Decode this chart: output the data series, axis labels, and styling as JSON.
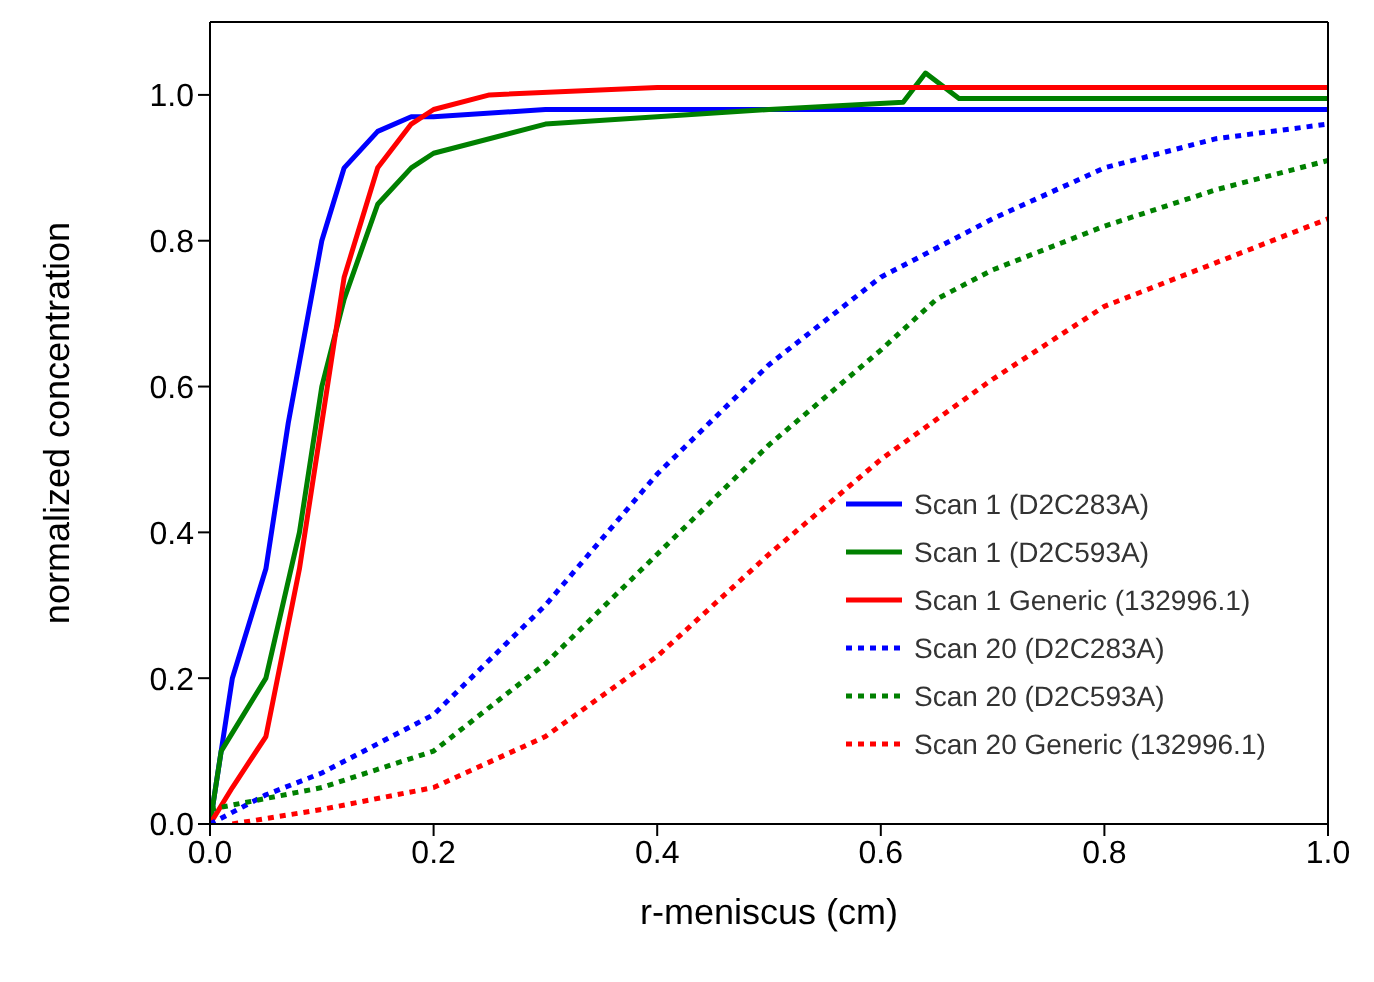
{
  "chart_data": {
    "type": "line",
    "xlabel": "r-meniscus (cm)",
    "ylabel": "normalized concentration",
    "xlim": [
      0,
      1
    ],
    "xticks": [
      {
        "value": 0,
        "label": "0.0"
      },
      0.2,
      0.4,
      0.6,
      0.8,
      {
        "value": 1,
        "label": "1.0"
      }
    ],
    "ylim": [
      0,
      1.1
    ],
    "yticks": [
      {
        "value": 0,
        "label": "0.0"
      },
      0.2,
      0.4,
      0.6,
      0.8,
      {
        "value": 1,
        "label": "1.0"
      }
    ],
    "grid": false,
    "legend": "bottom right",
    "marker": "none",
    "series": [
      {
        "name": "Scan 1 (D2C283A)",
        "color": "#0000ff",
        "line_style": "solid",
        "x": [
          0,
          0.01,
          0.02,
          0.03,
          0.05,
          0.07,
          0.1,
          0.12,
          0.15,
          0.18,
          0.2,
          0.3,
          0.5,
          0.7,
          0.9,
          1.0
        ],
        "values": [
          0,
          0.1,
          0.2,
          0.25,
          0.35,
          0.55,
          0.8,
          0.9,
          0.95,
          0.97,
          0.97,
          0.98,
          0.98,
          0.98,
          0.98,
          0.98
        ]
      },
      {
        "name": "Scan 1 (D2C593A)",
        "color": "#008000",
        "line_style": "solid",
        "x": [
          0,
          0.01,
          0.03,
          0.05,
          0.08,
          0.1,
          0.12,
          0.15,
          0.18,
          0.2,
          0.3,
          0.4,
          0.5,
          0.62,
          0.64,
          0.67,
          0.7,
          0.8,
          1.0
        ],
        "values": [
          0,
          0.1,
          0.15,
          0.2,
          0.4,
          0.6,
          0.72,
          0.85,
          0.9,
          0.92,
          0.96,
          0.97,
          0.98,
          0.99,
          1.03,
          0.995,
          0.995,
          0.995,
          0.995
        ]
      },
      {
        "name": "Scan 1 Generic (132996.1)",
        "color": "#ff0000",
        "line_style": "solid",
        "x": [
          0,
          0.02,
          0.05,
          0.08,
          0.1,
          0.12,
          0.15,
          0.18,
          0.2,
          0.25,
          0.4,
          0.6,
          0.8,
          1.0
        ],
        "values": [
          0,
          0.05,
          0.12,
          0.35,
          0.55,
          0.75,
          0.9,
          0.96,
          0.98,
          1.0,
          1.01,
          1.01,
          1.01,
          1.01
        ]
      },
      {
        "name": "Scan 20 (D2C283A)",
        "color": "#0000ff",
        "line_style": "dotted",
        "x": [
          0,
          0.05,
          0.1,
          0.2,
          0.3,
          0.4,
          0.5,
          0.6,
          0.7,
          0.8,
          0.9,
          1.0
        ],
        "values": [
          0,
          0.04,
          0.07,
          0.15,
          0.3,
          0.48,
          0.63,
          0.75,
          0.83,
          0.9,
          0.94,
          0.96
        ]
      },
      {
        "name": "Scan 20 (D2C593A)",
        "color": "#008000",
        "line_style": "dotted",
        "x": [
          0,
          0.1,
          0.2,
          0.3,
          0.4,
          0.5,
          0.6,
          0.65,
          0.7,
          0.8,
          0.9,
          1.0
        ],
        "values": [
          0.02,
          0.05,
          0.1,
          0.22,
          0.37,
          0.52,
          0.65,
          0.72,
          0.76,
          0.82,
          0.87,
          0.91
        ]
      },
      {
        "name": "Scan 20 Generic (132996.1)",
        "color": "#ff0000",
        "line_style": "dotted",
        "x": [
          0.02,
          0.1,
          0.2,
          0.3,
          0.4,
          0.5,
          0.6,
          0.7,
          0.8,
          0.9,
          1.0
        ],
        "values": [
          0,
          0.02,
          0.05,
          0.12,
          0.23,
          0.37,
          0.5,
          0.61,
          0.71,
          0.77,
          0.83
        ]
      }
    ]
  }
}
